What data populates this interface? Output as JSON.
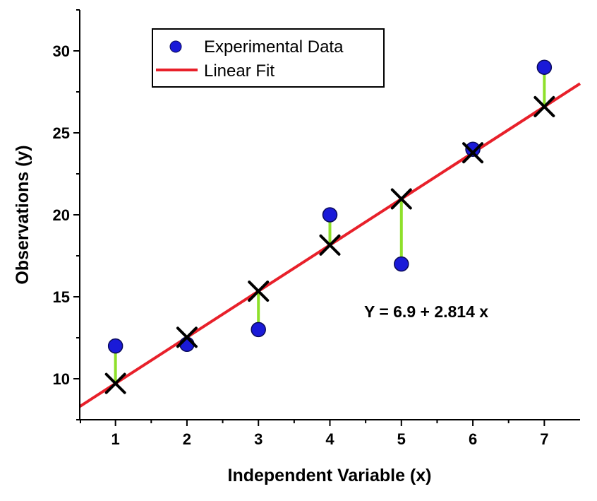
{
  "chart_data": {
    "type": "scatter",
    "title": "",
    "xlabel": "Independent Variable (x)",
    "ylabel": "Observations (y)",
    "xlim": [
      0.5,
      7.5
    ],
    "ylim": [
      7.5,
      32.5
    ],
    "x_ticks": [
      1,
      2,
      3,
      4,
      5,
      6,
      7
    ],
    "y_ticks": [
      10,
      15,
      20,
      25,
      30
    ],
    "grid": false,
    "legend_position": "top-left",
    "series": [
      {
        "name": "Experimental Data",
        "kind": "points",
        "color": "#1a1ad8",
        "x": [
          1,
          2,
          3,
          4,
          5,
          6,
          7
        ],
        "y": [
          12,
          12.1,
          13,
          20,
          17,
          24,
          29
        ]
      },
      {
        "name": "Linear Fit",
        "kind": "line",
        "color": "#e8202a",
        "intercept": 6.9,
        "slope": 2.814
      }
    ],
    "fitted_marker": "x",
    "residual_color": "#8ee02a",
    "equation": "Y = 6.9 + 2.814 x"
  }
}
